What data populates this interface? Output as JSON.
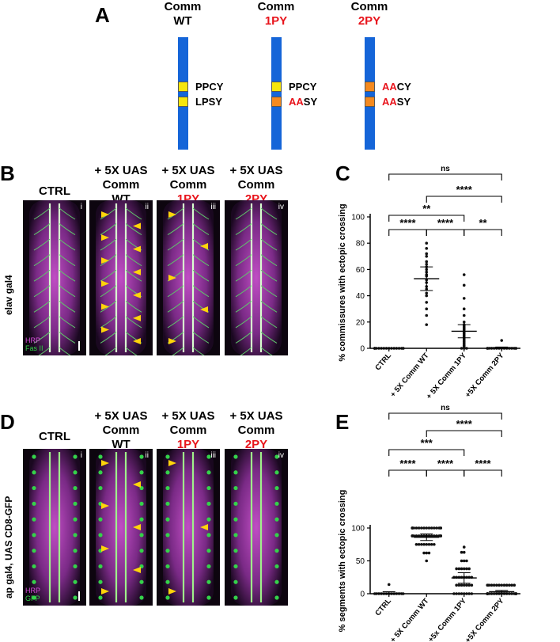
{
  "panel_A": {
    "label": "A",
    "constructs": [
      {
        "line1": "Comm",
        "line2": "WT",
        "line2_red": false,
        "motifs": [
          {
            "red": "",
            "black": "PPCY",
            "box": "#f6e60c"
          },
          {
            "red": "",
            "black": "LPSY",
            "box": "#f6e60c"
          }
        ]
      },
      {
        "line1": "Comm",
        "line2": "1PY",
        "line2_red": true,
        "motifs": [
          {
            "red": "",
            "black": "PPCY",
            "box": "#f6e60c"
          },
          {
            "red": "AA",
            "black": "SY",
            "box": "#f58a1f"
          }
        ]
      },
      {
        "line1": "Comm",
        "line2": "2PY",
        "line2_red": true,
        "motifs": [
          {
            "red": "AA",
            "black": "CY",
            "box": "#f58a1f"
          },
          {
            "red": "AA",
            "black": "SY",
            "box": "#f58a1f"
          }
        ]
      }
    ]
  },
  "panel_B": {
    "label": "B",
    "side_label": "elav gal4",
    "columns": [
      {
        "l1": "CTRL",
        "l2": "",
        "l3": "",
        "l3_red": false,
        "roman": "i"
      },
      {
        "l1": "+ 5X UAS",
        "l2": "Comm",
        "l3": "WT",
        "l3_red": false,
        "roman": "ii"
      },
      {
        "l1": "+ 5X UAS",
        "l2": "Comm",
        "l3": "1PY",
        "l3_red": true,
        "roman": "iii"
      },
      {
        "l1": "+ 5X UAS",
        "l2": "Comm",
        "l3": "2PY",
        "l3_red": true,
        "roman": "iv"
      }
    ],
    "stain1": "HRP",
    "stain2": "Fas II",
    "arrowheads": [
      0,
      12,
      5,
      0
    ]
  },
  "panel_D": {
    "label": "D",
    "side_label": "ap gal4, UAS CD8-GFP",
    "columns": [
      {
        "l1": "CTRL",
        "l2": "",
        "l3": "",
        "l3_red": false,
        "roman": "i"
      },
      {
        "l1": "+ 5X UAS",
        "l2": "Comm",
        "l3": "WT",
        "l3_red": false,
        "roman": "ii"
      },
      {
        "l1": "+ 5X UAS",
        "l2": "Comm",
        "l3": "1PY",
        "l3_red": true,
        "roman": "iii"
      },
      {
        "l1": "+ 5X UAS",
        "l2": "Comm",
        "l3": "2PY",
        "l3_red": true,
        "roman": "iv"
      }
    ],
    "stain1": "HRP",
    "stain2": "GFP",
    "arrowheads": [
      0,
      7,
      3,
      0
    ]
  },
  "chart_data": [
    {
      "panel": "C",
      "type": "scatter",
      "ylabel": "% commissures with ectopic crossing",
      "ylim": [
        0,
        100
      ],
      "yticks": [
        0,
        20,
        40,
        60,
        80,
        100
      ],
      "categories": [
        "CTRL",
        "+ 5X Comm WT",
        "+ 5X Comm 1PY",
        "+5X Comm 2PY"
      ],
      "series": [
        {
          "values": [
            0,
            0,
            0,
            0,
            0,
            0,
            0,
            0,
            0,
            0,
            0,
            0,
            0,
            0,
            0,
            0
          ],
          "mean": 0,
          "err": 0
        },
        {
          "values": [
            80,
            76,
            72,
            70,
            66,
            64,
            62,
            60,
            58,
            56,
            55,
            52,
            50,
            47,
            45,
            42,
            40,
            35,
            30,
            25,
            18
          ],
          "mean": 53,
          "err": 9
        },
        {
          "values": [
            56,
            48,
            38,
            30,
            25,
            20,
            18,
            17,
            16,
            15,
            14,
            12,
            11,
            10,
            9,
            8,
            7,
            6,
            5,
            4,
            3,
            2,
            1,
            0,
            0,
            0
          ],
          "mean": 13,
          "err": 5
        },
        {
          "values": [
            6,
            0,
            0,
            0,
            0,
            0,
            0,
            0,
            0,
            0,
            0,
            0,
            0,
            0,
            0,
            0
          ],
          "mean": 0.5,
          "err": 0.5
        }
      ],
      "significance": [
        {
          "from": 0,
          "to": 3,
          "label": "ns"
        },
        {
          "from": 1,
          "to": 3,
          "label": "****"
        },
        {
          "from": 0,
          "to": 2,
          "label": "**"
        },
        {
          "from": 0,
          "to": 1,
          "label": "****"
        },
        {
          "from": 1,
          "to": 2,
          "label": "****"
        },
        {
          "from": 2,
          "to": 3,
          "label": "**"
        }
      ]
    },
    {
      "panel": "E",
      "type": "scatter",
      "ylabel": "% segments with ectopic crossing",
      "ylim": [
        0,
        100
      ],
      "yticks": [
        0,
        50,
        100
      ],
      "categories": [
        "CTRL",
        "+ 5X Comm WT",
        "+5x Comm 1PY",
        "+5X Comm 2PY"
      ],
      "series": [
        {
          "values": [
            14,
            0,
            0,
            0,
            0,
            0,
            0,
            0,
            0,
            0,
            0,
            0,
            0,
            0
          ],
          "mean": 1,
          "err": 2
        },
        {
          "values": [
            100,
            100,
            100,
            100,
            100,
            100,
            100,
            100,
            100,
            100,
            100,
            100,
            100,
            100,
            100,
            100,
            88,
            88,
            88,
            88,
            88,
            88,
            88,
            88,
            88,
            88,
            88,
            88,
            88,
            88,
            88,
            75,
            75,
            75,
            75,
            75,
            75,
            75,
            75,
            62,
            62,
            62,
            50
          ],
          "mean": 86,
          "err": 5
        },
        {
          "values": [
            71,
            63,
            63,
            50,
            50,
            50,
            38,
            38,
            38,
            38,
            38,
            38,
            25,
            25,
            25,
            25,
            25,
            25,
            25,
            25,
            13,
            13,
            13,
            13,
            13,
            13,
            13,
            0,
            0,
            0,
            0,
            0,
            0,
            0,
            0
          ],
          "mean": 24,
          "err": 8
        },
        {
          "values": [
            13,
            13,
            13,
            13,
            13,
            13,
            13,
            13,
            13,
            13,
            13,
            13,
            0,
            0,
            0,
            0,
            0,
            0,
            0,
            0,
            0,
            0,
            0,
            0,
            0,
            0,
            0,
            0,
            0,
            0,
            0,
            0,
            0,
            0,
            0
          ],
          "mean": 3,
          "err": 2
        }
      ],
      "significance": [
        {
          "from": 0,
          "to": 3,
          "label": "ns"
        },
        {
          "from": 1,
          "to": 3,
          "label": "****"
        },
        {
          "from": 0,
          "to": 2,
          "label": "***"
        },
        {
          "from": 0,
          "to": 1,
          "label": "****"
        },
        {
          "from": 1,
          "to": 2,
          "label": "****"
        },
        {
          "from": 2,
          "to": 3,
          "label": "****"
        }
      ]
    }
  ]
}
